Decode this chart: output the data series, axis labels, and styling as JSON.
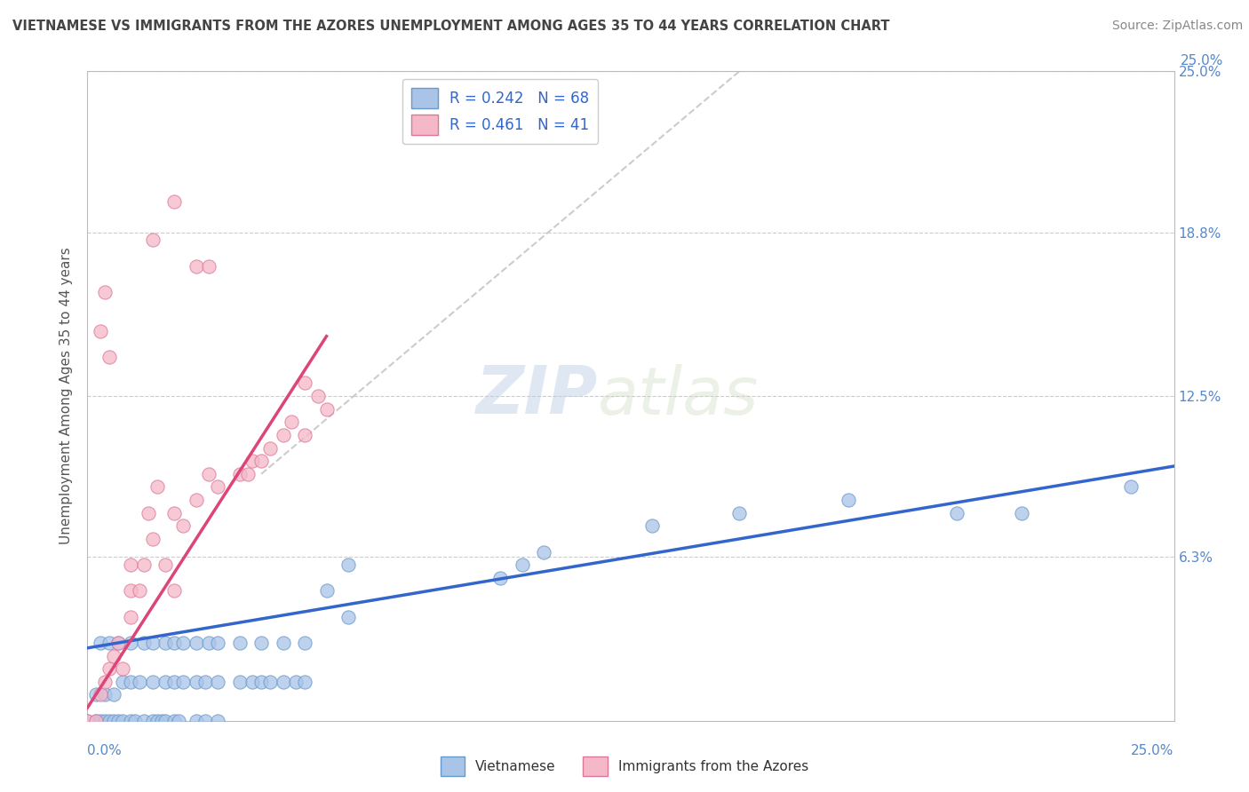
{
  "title": "VIETNAMESE VS IMMIGRANTS FROM THE AZORES UNEMPLOYMENT AMONG AGES 35 TO 44 YEARS CORRELATION CHART",
  "source": "Source: ZipAtlas.com",
  "ylabel": "Unemployment Among Ages 35 to 44 years",
  "ytick_labels": [
    "6.3%",
    "12.5%",
    "18.8%",
    "25.0%"
  ],
  "ytick_values": [
    0.063,
    0.125,
    0.188,
    0.25
  ],
  "xtick_labels": [
    "0.0%",
    "25.0%"
  ],
  "xmin": 0.0,
  "xmax": 0.25,
  "ymin": 0.0,
  "ymax": 0.25,
  "legend_r1": "R = 0.242",
  "legend_n1": "N = 68",
  "legend_r2": "R = 0.461",
  "legend_n2": "N = 41",
  "watermark_zip": "ZIP",
  "watermark_atlas": "atlas",
  "blue_scatter_color": "#aac4e8",
  "pink_scatter_color": "#f5b8c8",
  "blue_edge_color": "#6699cc",
  "pink_edge_color": "#dd7799",
  "blue_line_color": "#3366cc",
  "pink_line_color": "#dd4477",
  "diag_line_color": "#cccccc",
  "title_color": "#444444",
  "axis_label_color": "#5588cc",
  "source_color": "#888888",
  "ylabel_color": "#555555",
  "legend_text_color": "#444444",
  "legend_value_color": "#3366cc",
  "vietnamese_scatter": [
    [
      0.0,
      0.0
    ],
    [
      0.002,
      0.0
    ],
    [
      0.003,
      0.0
    ],
    [
      0.004,
      0.0
    ],
    [
      0.005,
      0.0
    ],
    [
      0.006,
      0.0
    ],
    [
      0.007,
      0.0
    ],
    [
      0.008,
      0.0
    ],
    [
      0.01,
      0.0
    ],
    [
      0.011,
      0.0
    ],
    [
      0.013,
      0.0
    ],
    [
      0.015,
      0.0
    ],
    [
      0.016,
      0.0
    ],
    [
      0.017,
      0.0
    ],
    [
      0.018,
      0.0
    ],
    [
      0.02,
      0.0
    ],
    [
      0.021,
      0.0
    ],
    [
      0.025,
      0.0
    ],
    [
      0.027,
      0.0
    ],
    [
      0.03,
      0.0
    ],
    [
      0.002,
      0.01
    ],
    [
      0.004,
      0.01
    ],
    [
      0.006,
      0.01
    ],
    [
      0.008,
      0.015
    ],
    [
      0.01,
      0.015
    ],
    [
      0.012,
      0.015
    ],
    [
      0.015,
      0.015
    ],
    [
      0.018,
      0.015
    ],
    [
      0.02,
      0.015
    ],
    [
      0.022,
      0.015
    ],
    [
      0.025,
      0.015
    ],
    [
      0.027,
      0.015
    ],
    [
      0.03,
      0.015
    ],
    [
      0.035,
      0.015
    ],
    [
      0.038,
      0.015
    ],
    [
      0.04,
      0.015
    ],
    [
      0.042,
      0.015
    ],
    [
      0.045,
      0.015
    ],
    [
      0.048,
      0.015
    ],
    [
      0.05,
      0.015
    ],
    [
      0.003,
      0.03
    ],
    [
      0.005,
      0.03
    ],
    [
      0.007,
      0.03
    ],
    [
      0.01,
      0.03
    ],
    [
      0.013,
      0.03
    ],
    [
      0.015,
      0.03
    ],
    [
      0.018,
      0.03
    ],
    [
      0.02,
      0.03
    ],
    [
      0.022,
      0.03
    ],
    [
      0.025,
      0.03
    ],
    [
      0.028,
      0.03
    ],
    [
      0.03,
      0.03
    ],
    [
      0.035,
      0.03
    ],
    [
      0.04,
      0.03
    ],
    [
      0.045,
      0.03
    ],
    [
      0.05,
      0.03
    ],
    [
      0.06,
      0.04
    ],
    [
      0.055,
      0.05
    ],
    [
      0.06,
      0.06
    ],
    [
      0.095,
      0.055
    ],
    [
      0.1,
      0.06
    ],
    [
      0.105,
      0.065
    ],
    [
      0.13,
      0.075
    ],
    [
      0.15,
      0.08
    ],
    [
      0.175,
      0.085
    ],
    [
      0.2,
      0.08
    ],
    [
      0.215,
      0.08
    ],
    [
      0.24,
      0.09
    ]
  ],
  "azores_scatter": [
    [
      0.0,
      0.0
    ],
    [
      0.002,
      0.0
    ],
    [
      0.003,
      0.01
    ],
    [
      0.004,
      0.015
    ],
    [
      0.005,
      0.02
    ],
    [
      0.006,
      0.025
    ],
    [
      0.007,
      0.03
    ],
    [
      0.008,
      0.02
    ],
    [
      0.01,
      0.04
    ],
    [
      0.01,
      0.05
    ],
    [
      0.01,
      0.06
    ],
    [
      0.012,
      0.05
    ],
    [
      0.013,
      0.06
    ],
    [
      0.014,
      0.08
    ],
    [
      0.015,
      0.07
    ],
    [
      0.016,
      0.09
    ],
    [
      0.018,
      0.06
    ],
    [
      0.02,
      0.05
    ],
    [
      0.02,
      0.08
    ],
    [
      0.022,
      0.075
    ],
    [
      0.025,
      0.085
    ],
    [
      0.028,
      0.095
    ],
    [
      0.03,
      0.09
    ],
    [
      0.035,
      0.095
    ],
    [
      0.037,
      0.095
    ],
    [
      0.038,
      0.1
    ],
    [
      0.04,
      0.1
    ],
    [
      0.042,
      0.105
    ],
    [
      0.045,
      0.11
    ],
    [
      0.047,
      0.115
    ],
    [
      0.05,
      0.11
    ],
    [
      0.003,
      0.15
    ],
    [
      0.004,
      0.165
    ],
    [
      0.005,
      0.14
    ],
    [
      0.015,
      0.185
    ],
    [
      0.02,
      0.2
    ],
    [
      0.025,
      0.175
    ],
    [
      0.028,
      0.175
    ],
    [
      0.05,
      0.13
    ],
    [
      0.053,
      0.125
    ],
    [
      0.055,
      0.12
    ]
  ],
  "blue_trendline_x": [
    0.0,
    0.25
  ],
  "blue_trendline_y": [
    0.028,
    0.098
  ],
  "pink_trendline_x": [
    0.0,
    0.055
  ],
  "pink_trendline_y": [
    0.005,
    0.148
  ],
  "diag_trendline_x": [
    0.04,
    0.15
  ],
  "diag_trendline_y": [
    0.095,
    0.25
  ]
}
